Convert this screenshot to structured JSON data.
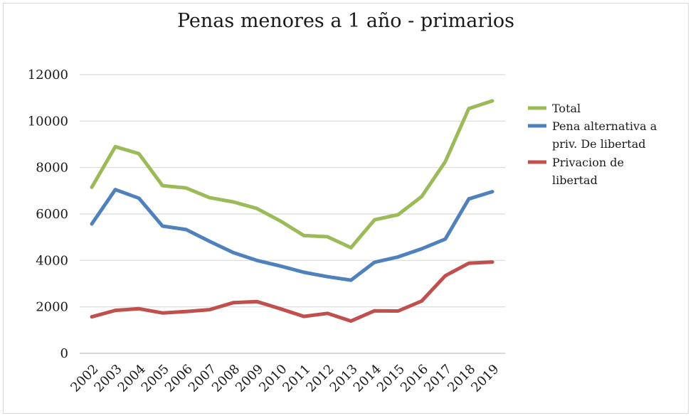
{
  "chart_data": {
    "type": "line",
    "title": "Penas menores a 1 año - primarios",
    "xlabel": "",
    "ylabel": "",
    "ylim": [
      0,
      12000
    ],
    "ytick_step": 2000,
    "grid": true,
    "legend_position": "right",
    "categories": [
      "2002",
      "2003",
      "2004",
      "2005",
      "2006",
      "2007",
      "2008",
      "2009",
      "2010",
      "2011",
      "2012",
      "2013",
      "2014",
      "2015",
      "2016",
      "2017",
      "2018",
      "2019"
    ],
    "series": [
      {
        "name": "Total",
        "legend_lines": [
          "Total"
        ],
        "color": "#9bbb59",
        "values": [
          7150,
          8900,
          8600,
          7220,
          7120,
          6700,
          6520,
          6240,
          5700,
          5070,
          5020,
          4550,
          5750,
          5970,
          6750,
          8250,
          10540,
          10870
        ]
      },
      {
        "name": "Pena alternativa a priv. De libertad",
        "legend_lines": [
          "Pena alternativa a",
          "priv. De libertad"
        ],
        "color": "#4f81bd",
        "values": [
          5570,
          7050,
          6680,
          5480,
          5330,
          4820,
          4340,
          4000,
          3760,
          3490,
          3300,
          3150,
          3920,
          4150,
          4500,
          4920,
          6650,
          6960
        ]
      },
      {
        "name": "Privacion de libertad",
        "legend_lines": [
          "Privacion de",
          "libertad"
        ],
        "color": "#c0504d",
        "values": [
          1570,
          1850,
          1920,
          1740,
          1800,
          1880,
          2180,
          2230,
          1920,
          1590,
          1720,
          1390,
          1830,
          1820,
          2250,
          3340,
          3880,
          3930
        ]
      }
    ]
  }
}
